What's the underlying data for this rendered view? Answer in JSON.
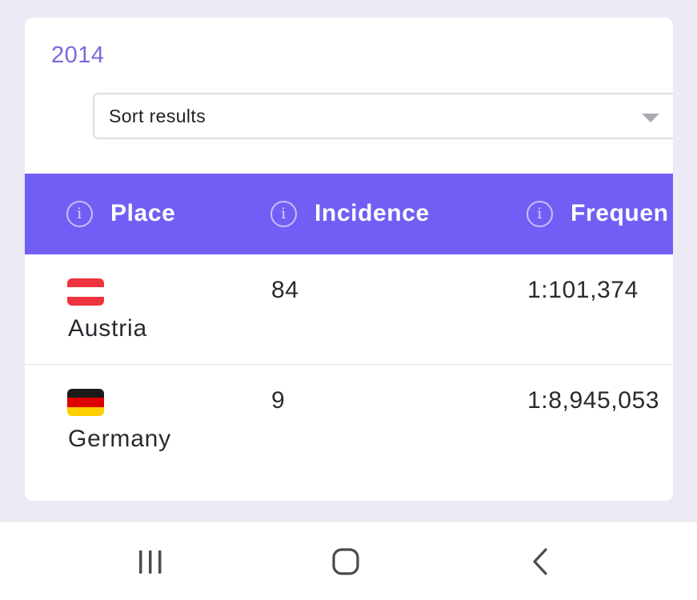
{
  "card": {
    "year": "2014",
    "sort": {
      "label": "Sort results"
    },
    "table": {
      "headers": [
        {
          "label": "Place",
          "icon": "info-icon"
        },
        {
          "label": "Incidence",
          "icon": "info-icon"
        },
        {
          "label": "Frequen",
          "icon": "info-icon"
        }
      ],
      "rows": [
        {
          "place": "Austria",
          "incidence": "84",
          "frequency": "1:101,374",
          "flag_colors": [
            "#ef3340",
            "#ffffff",
            "#ef3340"
          ]
        },
        {
          "place": "Germany",
          "incidence": "9",
          "frequency": "1:8,945,053",
          "flag_colors": [
            "#1a1a1a",
            "#dd0000",
            "#ffce00"
          ]
        }
      ]
    }
  },
  "colors": {
    "accent": "#715ff5",
    "year_text": "#7b68dc",
    "background": "#ecebf5"
  },
  "navbar": {
    "items": [
      {
        "name": "recent-apps-icon"
      },
      {
        "name": "home-icon"
      },
      {
        "name": "back-icon"
      }
    ]
  }
}
